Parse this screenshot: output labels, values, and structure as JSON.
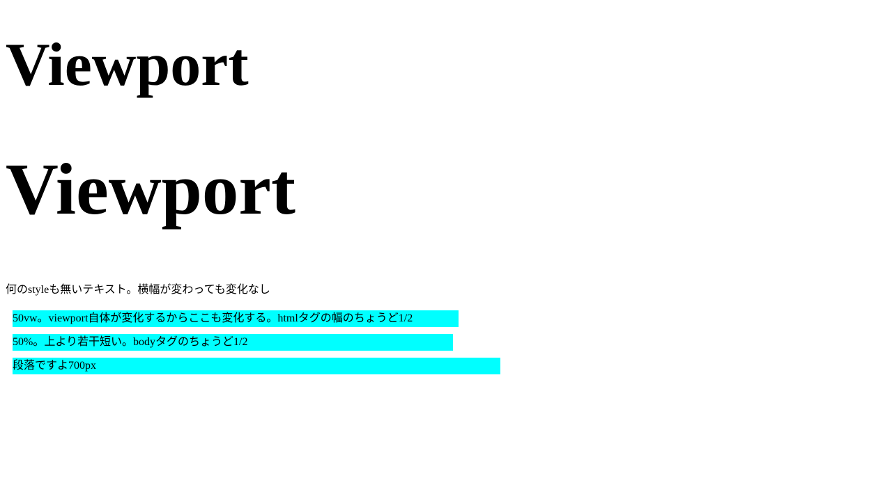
{
  "headings": {
    "first": "Viewport",
    "second": "Viewport"
  },
  "plain_text": "何のstyleも無いテキスト。横幅が変わっても変化なし",
  "bars": {
    "accent_color": "#00ffff",
    "items": [
      {
        "text": "50vw。viewport自体が変化するからここも変化する。htmlタグの幅のちょうど1/2"
      },
      {
        "text": "50%。上より若干短い。bodyタグのちょうど1/2"
      },
      {
        "text": "段落ですよ700px"
      }
    ]
  }
}
